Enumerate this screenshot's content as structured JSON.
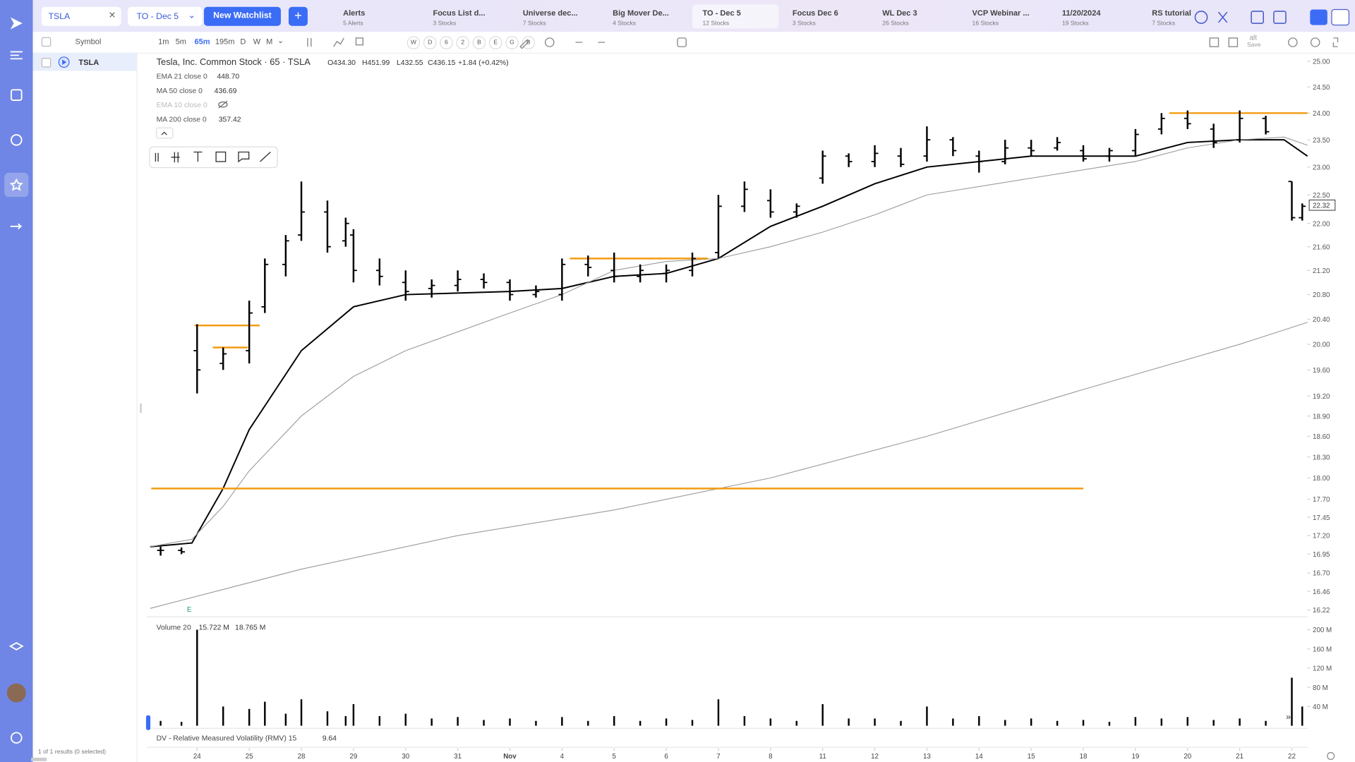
{
  "search": "TSLA",
  "watchlist_select": "TO - Dec 5",
  "new_watchlist": "New Watchlist",
  "tabs": [
    {
      "title": "Alerts",
      "sub": "5 Alerts"
    },
    {
      "title": "Focus List d...",
      "sub": "3 Stocks"
    },
    {
      "title": "Universe dec...",
      "sub": "7 Stocks"
    },
    {
      "title": "Big Mover De...",
      "sub": "4 Stocks"
    },
    {
      "title": "TO - Dec 5",
      "sub": "12 Stocks"
    },
    {
      "title": "Focus Dec 6",
      "sub": "3 Stocks"
    },
    {
      "title": "WL Dec 3",
      "sub": "26 Stocks"
    },
    {
      "title": "VCP Webinar ...",
      "sub": "16 Stocks"
    },
    {
      "title": "11/20/2024",
      "sub": "19 Stocks"
    },
    {
      "title": "RS tutorial",
      "sub": "7 Stocks"
    }
  ],
  "toolbar": {
    "symbol": "Symbol",
    "timeframes": [
      "1m",
      "5m",
      "65m",
      "195m",
      "D",
      "W",
      "M"
    ],
    "periods": [
      "W",
      "D",
      "6",
      "2",
      "B",
      "E",
      "G",
      "B"
    ],
    "save_key": "alt",
    "save": "Save"
  },
  "watchlist": {
    "rows": [
      "TSLA"
    ],
    "footer": "1 of 1 results (0 selected)"
  },
  "chart": {
    "title": "Tesla, Inc. Common Stock · 65 · TSLA",
    "open": "O434.30",
    "high": "H451.99",
    "low": "L432.55",
    "close": "C436.15",
    "change": "+1.84 (+0.42%)",
    "indicators": [
      {
        "label": "EMA 21 close 0",
        "value": "448.70"
      },
      {
        "label": "MA 50 close 0",
        "value": "436.69"
      },
      {
        "label": "EMA 10 close 0"
      },
      {
        "label": "MA 200 close 0",
        "value": "357.42"
      }
    ],
    "volume_label": "Volume 20",
    "volume_values": [
      "15.722 M",
      "18.765 M"
    ],
    "rmv_label": "DV - Relative Measured Volatility (RMV) 15",
    "rmv_value": "9.64",
    "earnings": "E"
  },
  "chart_data": {
    "type": "ohlc",
    "color": "#000000",
    "log_scale": true,
    "x": [
      -0.7,
      -0.3,
      0,
      0.5,
      1.0,
      1.3,
      1.7,
      2.0,
      2.5,
      2.85,
      3.0,
      3.5,
      4.0,
      4.5,
      5.0,
      5.5,
      6.0,
      6.5,
      7.0,
      7.5,
      8.0,
      8.5,
      9.0,
      9.5,
      10.0,
      10.5,
      11.0,
      11.5,
      12.0,
      12.5,
      13.0,
      13.5,
      14.0,
      14.5,
      15.0,
      15.5,
      16.0,
      16.5,
      17.0,
      17.5,
      18.0,
      18.5,
      19.0,
      19.5,
      20.0,
      20.5,
      21.0,
      21.2
    ],
    "open": [
      17.0,
      17.0,
      19.9,
      19.7,
      19.9,
      20.6,
      21.3,
      21.8,
      22.2,
      21.7,
      21.8,
      21.2,
      21.0,
      20.9,
      20.95,
      21.05,
      21.0,
      20.8,
      20.8,
      21.3,
      21.2,
      21.1,
      21.15,
      21.2,
      21.5,
      22.3,
      22.4,
      22.2,
      22.8,
      23.2,
      23.1,
      23.2,
      23.2,
      23.5,
      23.2,
      23.1,
      23.35,
      23.35,
      23.3,
      23.2,
      23.3,
      23.7,
      23.9,
      23.7,
      23.5,
      23.9,
      22.74,
      22.1
    ],
    "high": [
      17.05,
      17.04,
      20.32,
      19.95,
      20.7,
      21.4,
      21.8,
      22.74,
      22.4,
      22.1,
      21.9,
      21.4,
      21.2,
      21.05,
      21.2,
      21.15,
      21.05,
      20.95,
      21.4,
      21.45,
      21.5,
      21.3,
      21.3,
      21.5,
      22.5,
      22.74,
      22.6,
      22.35,
      23.3,
      23.25,
      23.4,
      23.35,
      23.75,
      23.55,
      23.3,
      23.5,
      23.5,
      23.55,
      23.4,
      23.35,
      23.7,
      24.0,
      24.05,
      23.8,
      24.05,
      23.95,
      22.74,
      22.35
    ],
    "low": [
      16.93,
      16.95,
      19.24,
      19.6,
      19.7,
      20.5,
      21.1,
      21.7,
      21.5,
      21.6,
      21.0,
      20.95,
      20.7,
      20.75,
      20.85,
      20.9,
      20.7,
      20.75,
      20.7,
      21.1,
      21.0,
      21.0,
      21.0,
      21.1,
      21.4,
      22.2,
      22.1,
      22.1,
      22.7,
      23.0,
      23.0,
      23.0,
      23.1,
      23.2,
      22.9,
      23.05,
      23.2,
      23.3,
      23.1,
      23.1,
      23.2,
      23.6,
      23.7,
      23.35,
      23.45,
      23.6,
      22.05,
      22.05
    ],
    "close": [
      17.0,
      16.98,
      19.6,
      19.85,
      20.5,
      21.3,
      21.7,
      22.2,
      21.6,
      22.0,
      21.2,
      21.1,
      20.85,
      20.95,
      21.05,
      21.0,
      20.8,
      20.85,
      21.3,
      21.25,
      21.1,
      21.2,
      21.2,
      21.4,
      22.3,
      22.6,
      22.2,
      22.3,
      23.2,
      23.1,
      23.25,
      23.05,
      23.5,
      23.3,
      23.1,
      23.35,
      23.3,
      23.45,
      23.15,
      23.3,
      23.6,
      23.9,
      23.8,
      23.45,
      23.9,
      23.65,
      22.1,
      22.3
    ],
    "lines": [
      {
        "color": "#000000",
        "x": [
          -0.9,
          -0.1,
          0.5,
          1.0,
          2.0,
          3.0,
          4.0,
          6.0,
          7.0,
          8.0,
          9.0,
          10.0,
          11.0,
          12.0,
          13.0,
          14.0,
          16.0,
          18.0,
          19.0,
          20.0,
          20.85,
          21.3
        ],
        "values": [
          17.05,
          17.1,
          17.85,
          18.7,
          19.9,
          20.6,
          20.8,
          20.85,
          20.9,
          21.1,
          21.15,
          21.4,
          21.95,
          22.3,
          22.7,
          23.0,
          23.2,
          23.2,
          23.45,
          23.5,
          23.5,
          23.2
        ]
      },
      {
        "color": "#9a9a9a",
        "x": [
          -0.9,
          -0.1,
          0.5,
          1.0,
          2.0,
          3.0,
          4.0,
          6.0,
          7.0,
          8.0,
          9.0,
          10.0,
          11.0,
          12.0,
          13.0,
          14.0,
          16.0,
          18.0,
          19.0,
          20.0,
          20.85,
          21.3
        ],
        "values": [
          17.05,
          17.15,
          17.6,
          18.1,
          18.9,
          19.5,
          19.9,
          20.5,
          20.8,
          21.2,
          21.35,
          21.4,
          21.6,
          21.85,
          22.15,
          22.5,
          22.8,
          23.1,
          23.35,
          23.5,
          23.55,
          23.4
        ]
      },
      {
        "color": "#9a9a9a",
        "x": [
          -0.9,
          2,
          5,
          8,
          11,
          14,
          17,
          20,
          21.3
        ],
        "values": [
          16.24,
          16.75,
          17.2,
          17.55,
          18.0,
          18.6,
          19.3,
          20.0,
          20.35
        ]
      }
    ],
    "levels": [
      {
        "x": [
          -0.88,
          17.0
        ],
        "value": 17.85
      },
      {
        "x": [
          -0.05,
          1.2
        ],
        "value": 20.3
      },
      {
        "x": [
          0.3,
          0.97
        ],
        "value": 19.95
      },
      {
        "x": [
          7.15,
          9.8
        ],
        "value": 21.4
      },
      {
        "x": [
          18.65,
          21.3
        ],
        "value": 24.0
      }
    ],
    "level_color": "#f39c12",
    "last_price": 22.32,
    "xlim": [
      -0.88,
      21.3
    ],
    "xticks": [
      {
        "value": 0,
        "label": "24"
      },
      {
        "value": 1,
        "label": "25"
      },
      {
        "value": 2,
        "label": "28"
      },
      {
        "value": 3,
        "label": "29"
      },
      {
        "value": 4,
        "label": "30"
      },
      {
        "value": 5,
        "label": "31"
      },
      {
        "value": 6,
        "label": "Nov"
      },
      {
        "value": 7,
        "label": "4"
      },
      {
        "value": 8,
        "label": "5"
      },
      {
        "value": 9,
        "label": "6"
      },
      {
        "value": 10,
        "label": "7"
      },
      {
        "value": 11,
        "label": "8"
      },
      {
        "value": 12,
        "label": "11"
      },
      {
        "value": 13,
        "label": "12"
      },
      {
        "value": 14,
        "label": "13"
      },
      {
        "value": 15,
        "label": "14"
      },
      {
        "value": 16,
        "label": "15"
      },
      {
        "value": 17,
        "label": "18"
      },
      {
        "value": 18,
        "label": "19"
      },
      {
        "value": 19,
        "label": "20"
      },
      {
        "value": 20,
        "label": "21"
      },
      {
        "value": 21,
        "label": "22"
      }
    ],
    "ylim": [
      16.22,
      25
    ],
    "yticks": [
      {
        "value": 25,
        "label": "25.00"
      },
      {
        "value": 24.5,
        "label": "24.50"
      },
      {
        "value": 24,
        "label": "24.00"
      },
      {
        "value": 23.5,
        "label": "23.50"
      },
      {
        "value": 23,
        "label": "23.00"
      },
      {
        "value": 22.5,
        "label": "22.50"
      },
      {
        "value": 22,
        "label": "22.00"
      },
      {
        "value": 21.6,
        "label": "21.60"
      },
      {
        "value": 21.2,
        "label": "21.20"
      },
      {
        "value": 20.8,
        "label": "20.80"
      },
      {
        "value": 20.4,
        "label": "20.40"
      },
      {
        "value": 20,
        "label": "20.00"
      },
      {
        "value": 19.6,
        "label": "19.60"
      },
      {
        "value": 19.2,
        "label": "19.20"
      },
      {
        "value": 18.9,
        "label": "18.90"
      },
      {
        "value": 18.6,
        "label": "18.60"
      },
      {
        "value": 18.3,
        "label": "18.30"
      },
      {
        "value": 18,
        "label": "18.00"
      },
      {
        "value": 17.7,
        "label": "17.70"
      },
      17.45,
      {
        "value": 17.2,
        "label": "17.20"
      },
      16.95,
      {
        "value": 16.7,
        "label": "16.70"
      },
      16.46,
      16.22
    ],
    "volume": {
      "color": "#000000",
      "values": [
        10,
        8,
        200,
        40,
        35,
        50,
        25,
        55,
        30,
        20,
        45,
        20,
        25,
        15,
        18,
        12,
        15,
        10,
        18,
        10,
        20,
        10,
        15,
        12,
        55,
        20,
        15,
        10,
        45,
        15,
        15,
        10,
        40,
        15,
        20,
        12,
        15,
        10,
        12,
        8,
        18,
        15,
        18,
        12,
        15,
        10,
        100,
        40
      ],
      "ylim": [
        0,
        225
      ],
      "yticks": [
        {
          "value": 200,
          "label": "200 M"
        },
        {
          "value": 160,
          "label": "160 M"
        },
        {
          "value": 120,
          "label": "120 M"
        },
        {
          "value": 80,
          "label": "80 M"
        },
        {
          "value": 40,
          "label": "40 M"
        }
      ]
    }
  }
}
